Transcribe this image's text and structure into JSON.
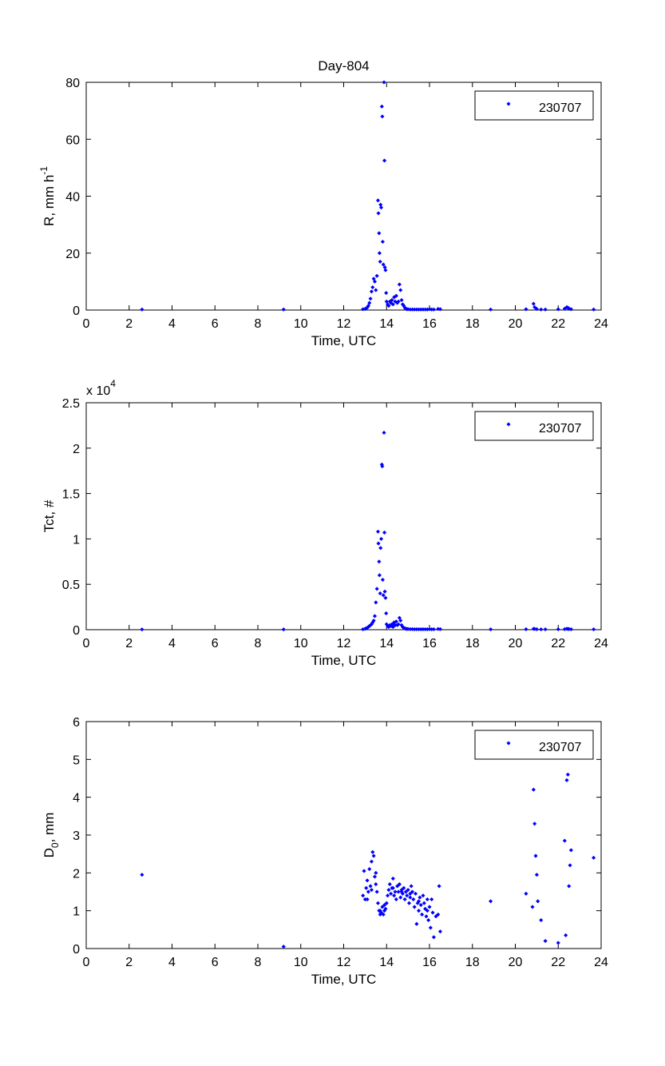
{
  "figure": {
    "title": "Day-804",
    "marker_color": "#0000ff"
  },
  "chart_data": [
    {
      "type": "scatter",
      "title": "Day-804",
      "xlabel": "Time, UTC",
      "ylabel": "R, mm h",
      "ylabel_sup": "-1",
      "xlim": [
        0,
        24
      ],
      "ylim": [
        0,
        80
      ],
      "xticks": [
        0,
        2,
        4,
        6,
        8,
        10,
        12,
        14,
        16,
        18,
        20,
        22,
        24
      ],
      "yticks": [
        0,
        20,
        40,
        60,
        80
      ],
      "yticklabels": [
        "0",
        "20",
        "40",
        "60",
        "80"
      ],
      "exponent_label": "",
      "exponent_sup": "",
      "legend_position": "top-right",
      "series": [
        {
          "name": "230707",
          "color": "#0000ff",
          "x": [
            2.6,
            9.2,
            12.9,
            13.0,
            13.05,
            13.1,
            13.15,
            13.2,
            13.25,
            13.3,
            13.35,
            13.4,
            13.45,
            13.5,
            13.55,
            13.6,
            13.62,
            13.65,
            13.67,
            13.7,
            13.72,
            13.75,
            13.78,
            13.8,
            13.82,
            13.85,
            13.88,
            13.9,
            13.92,
            13.95,
            13.98,
            14.0,
            14.05,
            14.1,
            14.15,
            14.2,
            14.25,
            14.3,
            14.35,
            14.4,
            14.45,
            14.5,
            14.55,
            14.6,
            14.65,
            14.7,
            14.75,
            14.8,
            14.85,
            14.9,
            14.95,
            15.0,
            15.1,
            15.2,
            15.3,
            15.4,
            15.5,
            15.6,
            15.7,
            15.8,
            15.9,
            16.0,
            16.1,
            16.2,
            16.4,
            16.5,
            18.85,
            20.5,
            20.85,
            20.9,
            21.0,
            21.2,
            21.4,
            22.0,
            22.3,
            22.4,
            22.45,
            22.5,
            22.6,
            23.65
          ],
          "y": [
            0.2,
            0.2,
            0.3,
            0.4,
            0.6,
            0.9,
            1.5,
            2.5,
            4.0,
            6.5,
            8.0,
            11.0,
            10.0,
            7.0,
            12.0,
            38.5,
            34.0,
            27.0,
            20.0,
            17.0,
            37.0,
            36.0,
            71.5,
            68.0,
            24.0,
            16.0,
            80.0,
            52.5,
            15.0,
            14.0,
            6.0,
            3.0,
            2.0,
            1.5,
            3.0,
            2.5,
            3.5,
            2.0,
            4.5,
            3.0,
            5.0,
            2.5,
            3.0,
            9.0,
            7.0,
            3.5,
            2.0,
            1.5,
            0.8,
            0.5,
            0.3,
            0.3,
            0.2,
            0.2,
            0.2,
            0.2,
            0.2,
            0.2,
            0.2,
            0.2,
            0.2,
            0.3,
            0.2,
            0.2,
            0.4,
            0.3,
            0.2,
            0.3,
            2.2,
            1.0,
            0.4,
            0.2,
            0.2,
            0.3,
            0.5,
            1.0,
            0.8,
            0.6,
            0.3,
            0.2
          ]
        }
      ]
    },
    {
      "type": "scatter",
      "title": "",
      "xlabel": "Time, UTC",
      "ylabel": "Tct, #",
      "ylabel_sup": "",
      "xlim": [
        0,
        24
      ],
      "ylim": [
        0,
        2.5
      ],
      "xticks": [
        0,
        2,
        4,
        6,
        8,
        10,
        12,
        14,
        16,
        18,
        20,
        22,
        24
      ],
      "yticks": [
        0,
        0.5,
        1,
        1.5,
        2,
        2.5
      ],
      "yticklabels": [
        "0",
        "0.5",
        "1",
        "1.5",
        "2",
        "2.5"
      ],
      "exponent_label": "x 10",
      "exponent_sup": "4",
      "legend_position": "top-right",
      "series": [
        {
          "name": "230707",
          "color": "#0000ff",
          "x": [
            2.6,
            9.2,
            12.9,
            13.0,
            13.05,
            13.1,
            13.15,
            13.2,
            13.25,
            13.3,
            13.35,
            13.4,
            13.45,
            13.5,
            13.55,
            13.6,
            13.62,
            13.65,
            13.67,
            13.7,
            13.72,
            13.75,
            13.78,
            13.8,
            13.82,
            13.85,
            13.88,
            13.9,
            13.92,
            13.95,
            13.98,
            14.0,
            14.05,
            14.1,
            14.15,
            14.2,
            14.25,
            14.3,
            14.35,
            14.4,
            14.45,
            14.5,
            14.55,
            14.6,
            14.65,
            14.7,
            14.75,
            14.8,
            14.85,
            14.9,
            14.95,
            15.0,
            15.1,
            15.2,
            15.3,
            15.4,
            15.5,
            15.6,
            15.7,
            15.8,
            15.9,
            16.0,
            16.1,
            16.2,
            16.4,
            16.5,
            18.85,
            20.5,
            20.85,
            20.9,
            21.0,
            21.2,
            21.4,
            22.0,
            22.3,
            22.4,
            22.45,
            22.5,
            22.6,
            23.65
          ],
          "y": [
            0.003,
            0.003,
            0.005,
            0.01,
            0.015,
            0.02,
            0.03,
            0.04,
            0.05,
            0.06,
            0.08,
            0.1,
            0.15,
            0.3,
            0.45,
            1.08,
            0.95,
            0.75,
            0.6,
            0.4,
            0.9,
            1.0,
            1.82,
            1.8,
            0.55,
            0.38,
            2.17,
            1.07,
            0.42,
            0.35,
            0.18,
            0.06,
            0.04,
            0.03,
            0.05,
            0.04,
            0.06,
            0.03,
            0.08,
            0.05,
            0.09,
            0.05,
            0.06,
            0.13,
            0.1,
            0.05,
            0.03,
            0.02,
            0.015,
            0.01,
            0.008,
            0.008,
            0.006,
            0.006,
            0.005,
            0.005,
            0.005,
            0.005,
            0.005,
            0.005,
            0.005,
            0.006,
            0.005,
            0.005,
            0.008,
            0.006,
            0.004,
            0.005,
            0.01,
            0.008,
            0.005,
            0.004,
            0.004,
            0.005,
            0.006,
            0.01,
            0.008,
            0.007,
            0.005,
            0.004
          ]
        }
      ]
    },
    {
      "type": "scatter",
      "title": "",
      "xlabel": "Time, UTC",
      "ylabel": "D",
      "ylabel_sub": "0",
      "ylabel_suffix": ", mm",
      "xlim": [
        0,
        24
      ],
      "ylim": [
        0,
        6
      ],
      "xticks": [
        0,
        2,
        4,
        6,
        8,
        10,
        12,
        14,
        16,
        18,
        20,
        22,
        24
      ],
      "yticks": [
        0,
        1,
        2,
        3,
        4,
        5,
        6
      ],
      "yticklabels": [
        "0",
        "1",
        "2",
        "3",
        "4",
        "5",
        "6"
      ],
      "exponent_label": "",
      "exponent_sup": "",
      "legend_position": "top-right",
      "series": [
        {
          "name": "230707",
          "color": "#0000ff",
          "x": [
            2.6,
            9.2,
            12.9,
            12.95,
            13.0,
            13.05,
            13.1,
            13.15,
            13.2,
            13.25,
            13.3,
            13.35,
            13.4,
            13.45,
            13.5,
            13.55,
            13.6,
            13.65,
            13.7,
            13.75,
            13.8,
            13.85,
            13.9,
            13.95,
            14.0,
            14.05,
            14.1,
            14.15,
            14.2,
            14.25,
            14.3,
            14.35,
            14.4,
            14.45,
            14.5,
            14.55,
            14.6,
            14.65,
            14.7,
            14.75,
            14.8,
            14.85,
            14.9,
            14.95,
            15.0,
            15.05,
            15.1,
            15.15,
            15.2,
            15.25,
            15.3,
            15.35,
            15.4,
            15.45,
            15.5,
            15.55,
            15.6,
            15.65,
            15.7,
            15.75,
            15.8,
            15.85,
            15.9,
            15.95,
            16.0,
            16.05,
            16.1,
            16.15,
            16.2,
            16.4,
            16.45,
            16.5,
            18.85,
            20.5,
            20.8,
            20.85,
            20.9,
            20.95,
            21.0,
            21.05,
            21.2,
            21.4,
            22.0,
            22.3,
            22.35,
            22.4,
            22.45,
            22.5,
            22.55,
            22.6,
            23.65,
            13.1,
            13.3,
            13.5,
            13.7,
            13.9,
            14.3,
            14.7,
            15.1,
            15.5,
            15.9,
            16.3
          ],
          "y": [
            1.95,
            0.05,
            1.4,
            2.05,
            1.3,
            1.6,
            1.8,
            1.5,
            2.1,
            1.65,
            2.3,
            2.55,
            2.45,
            1.9,
            1.7,
            1.5,
            1.2,
            1.0,
            0.9,
            0.95,
            1.1,
            0.9,
            1.0,
            1.05,
            1.2,
            1.4,
            1.55,
            1.7,
            1.45,
            1.6,
            1.85,
            1.4,
            1.5,
            1.3,
            1.65,
            1.5,
            1.7,
            1.35,
            1.55,
            1.45,
            1.6,
            1.3,
            1.5,
            1.4,
            1.55,
            1.2,
            1.35,
            1.65,
            1.5,
            1.3,
            1.1,
            1.45,
            0.65,
            1.2,
            1.0,
            1.35,
            1.15,
            0.9,
            1.4,
            1.2,
            1.05,
            0.85,
            1.3,
            0.75,
            1.1,
            0.55,
            1.3,
            0.95,
            0.3,
            0.9,
            1.65,
            0.45,
            1.25,
            1.45,
            1.1,
            4.2,
            3.3,
            2.45,
            1.95,
            1.25,
            0.75,
            0.2,
            0.15,
            2.85,
            0.35,
            4.45,
            4.6,
            1.65,
            2.2,
            2.6,
            2.4,
            1.3,
            1.55,
            2.0,
            1.0,
            1.15,
            1.6,
            1.5,
            1.45,
            1.25,
            1.0,
            0.85
          ]
        }
      ]
    }
  ]
}
